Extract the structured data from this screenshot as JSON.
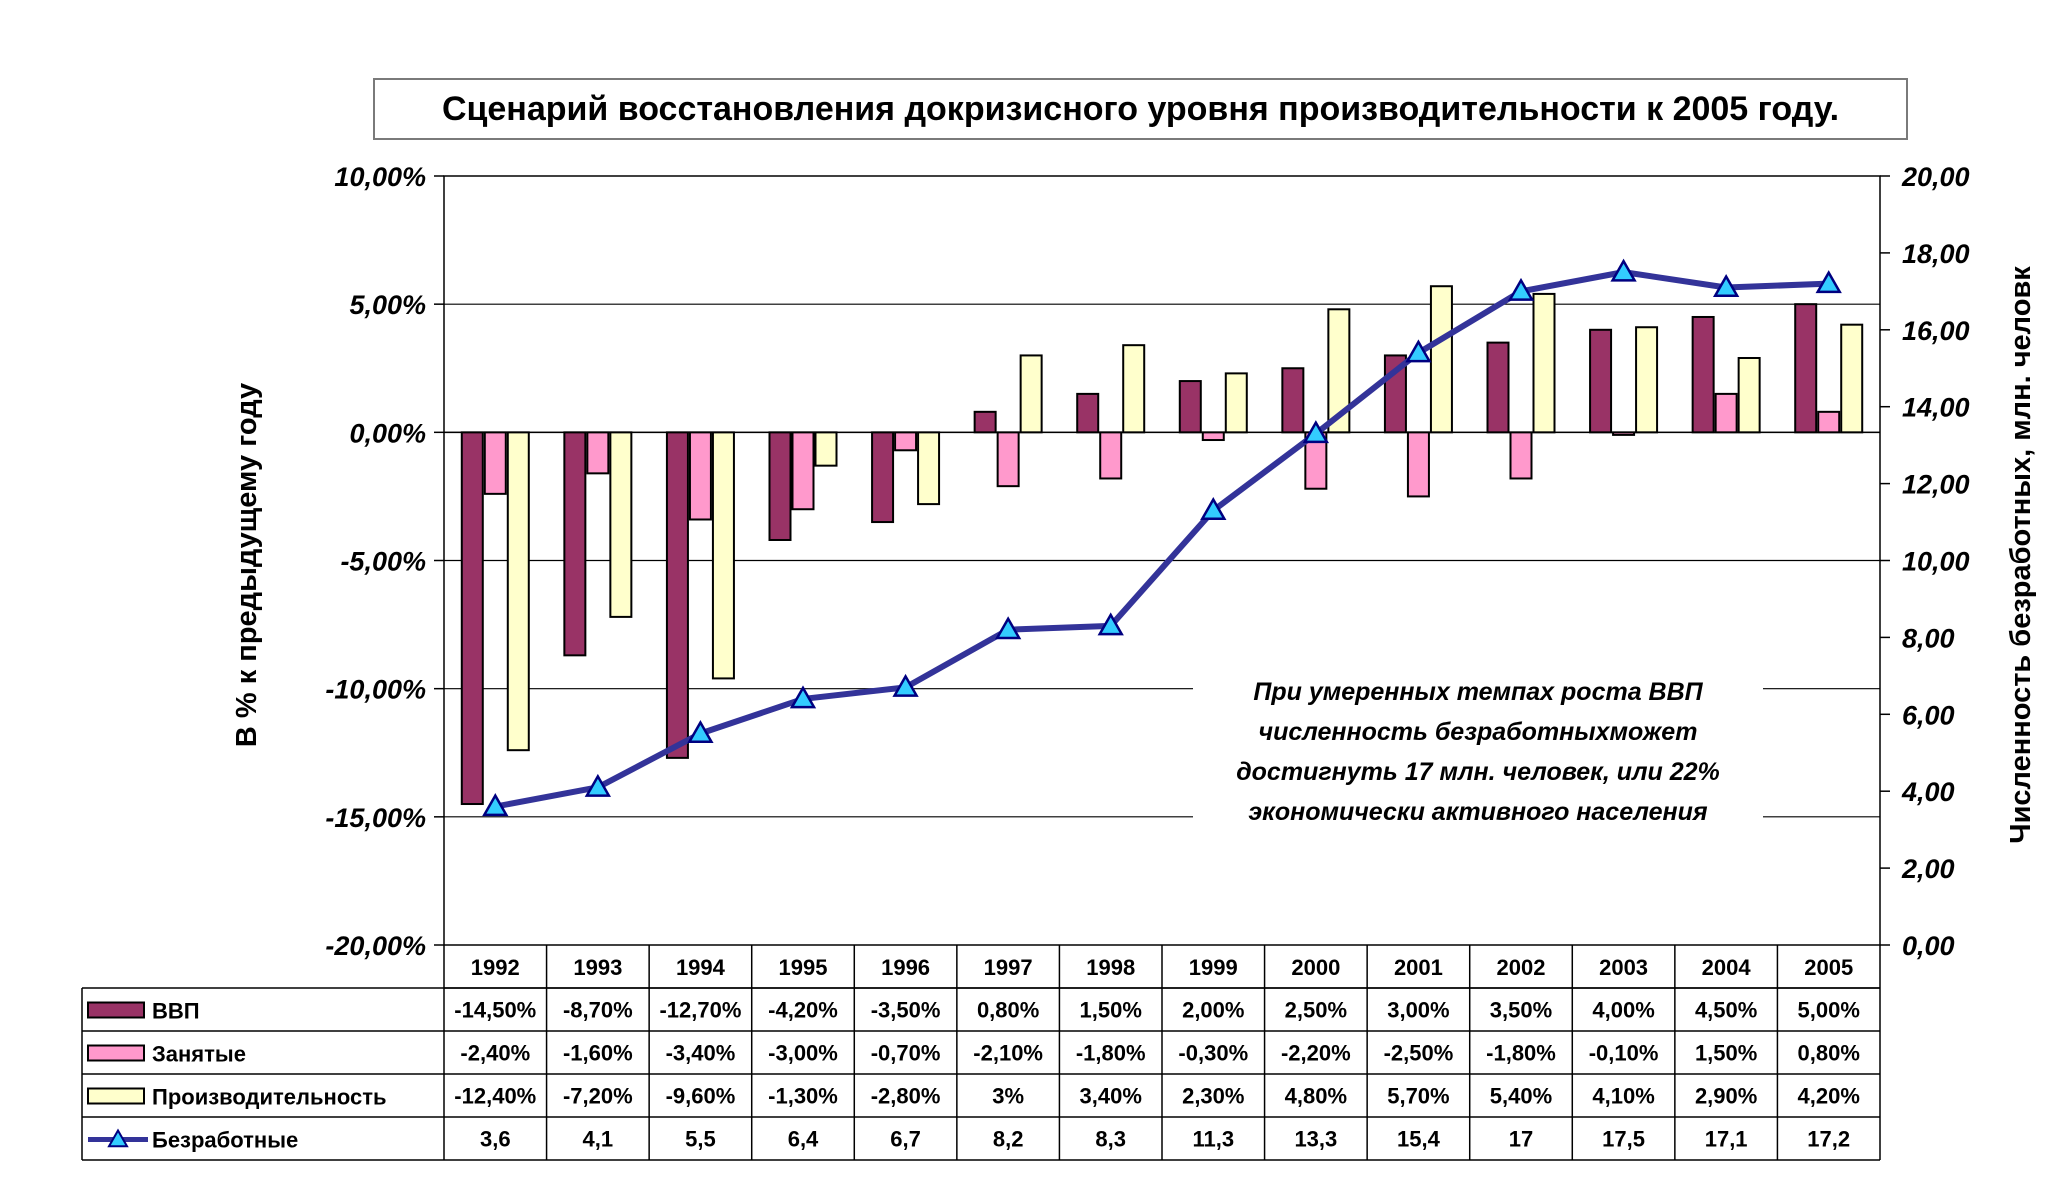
{
  "chart_data": {
    "type": "bar",
    "title": "Сценарий восстановления докризисного уровня производительности к 2005 году.",
    "ylabel": "В % к предыдущему году",
    "y2label": "Численность безработных, млн. человк",
    "ylim": [
      -0.2,
      0.1
    ],
    "y2lim": [
      0,
      20
    ],
    "yticks": [
      "10,00%",
      "5,00%",
      "0,00%",
      "-5,00%",
      "-10,00%",
      "-15,00%",
      "-20,00%"
    ],
    "y2ticks": [
      "20,00",
      "18,00",
      "16,00",
      "14,00",
      "12,00",
      "10,00",
      "8,00",
      "6,00",
      "4,00",
      "2,00",
      "0,00"
    ],
    "categories": [
      "1992",
      "1993",
      "1994",
      "1995",
      "1996",
      "1997",
      "1998",
      "1999",
      "2000",
      "2001",
      "2002",
      "2003",
      "2004",
      "2005"
    ],
    "series": [
      {
        "name": "ВВП",
        "kind": "bar",
        "axis": "left",
        "color": "#993366",
        "values": [
          -0.145,
          -0.087,
          -0.127,
          -0.042,
          -0.035,
          0.008,
          0.015,
          0.02,
          0.025,
          0.03,
          0.035,
          0.04,
          0.045,
          0.05
        ],
        "labels": [
          "-14,50%",
          "-8,70%",
          "-12,70%",
          "-4,20%",
          "-3,50%",
          "0,80%",
          "1,50%",
          "2,00%",
          "2,50%",
          "3,00%",
          "3,50%",
          "4,00%",
          "4,50%",
          "5,00%"
        ]
      },
      {
        "name": "Занятые",
        "kind": "bar",
        "axis": "left",
        "color": "#ff99cc",
        "values": [
          -0.024,
          -0.016,
          -0.034,
          -0.03,
          -0.007,
          -0.021,
          -0.018,
          -0.003,
          -0.022,
          -0.025,
          -0.018,
          -0.001,
          0.015,
          0.008
        ],
        "labels": [
          "-2,40%",
          "-1,60%",
          "-3,40%",
          "-3,00%",
          "-0,70%",
          "-2,10%",
          "-1,80%",
          "-0,30%",
          "-2,20%",
          "-2,50%",
          "-1,80%",
          "-0,10%",
          "1,50%",
          "0,80%"
        ]
      },
      {
        "name": "Производительность",
        "kind": "bar",
        "axis": "left",
        "color": "#ffffcc",
        "values": [
          -0.124,
          -0.072,
          -0.096,
          -0.013,
          -0.028,
          0.03,
          0.034,
          0.023,
          0.048,
          0.057,
          0.054,
          0.041,
          0.029,
          0.042
        ],
        "labels": [
          "-12,40%",
          "-7,20%",
          "-9,60%",
          "-1,30%",
          "-2,80%",
          "3%",
          "3,40%",
          "2,30%",
          "4,80%",
          "5,70%",
          "5,40%",
          "4,10%",
          "2,90%",
          "4,20%"
        ]
      },
      {
        "name": "Безработные",
        "kind": "line",
        "axis": "right",
        "color": "#333399",
        "marker_color": "#33ccff",
        "values": [
          3.6,
          4.1,
          5.5,
          6.4,
          6.7,
          8.2,
          8.3,
          11.3,
          13.3,
          15.4,
          17,
          17.5,
          17.1,
          17.2
        ],
        "labels": [
          "3,6",
          "4,1",
          "5,5",
          "6,4",
          "6,7",
          "8,2",
          "8,3",
          "11,3",
          "13,3",
          "15,4",
          "17",
          "17,5",
          "17,1",
          "17,2"
        ]
      }
    ],
    "annotation": "При умеренных темпах роста ВВП численность безработныхможет достигнуть 17 млн. человек, или 22% экономически активного населения",
    "grid": true,
    "legend": "data-table"
  }
}
